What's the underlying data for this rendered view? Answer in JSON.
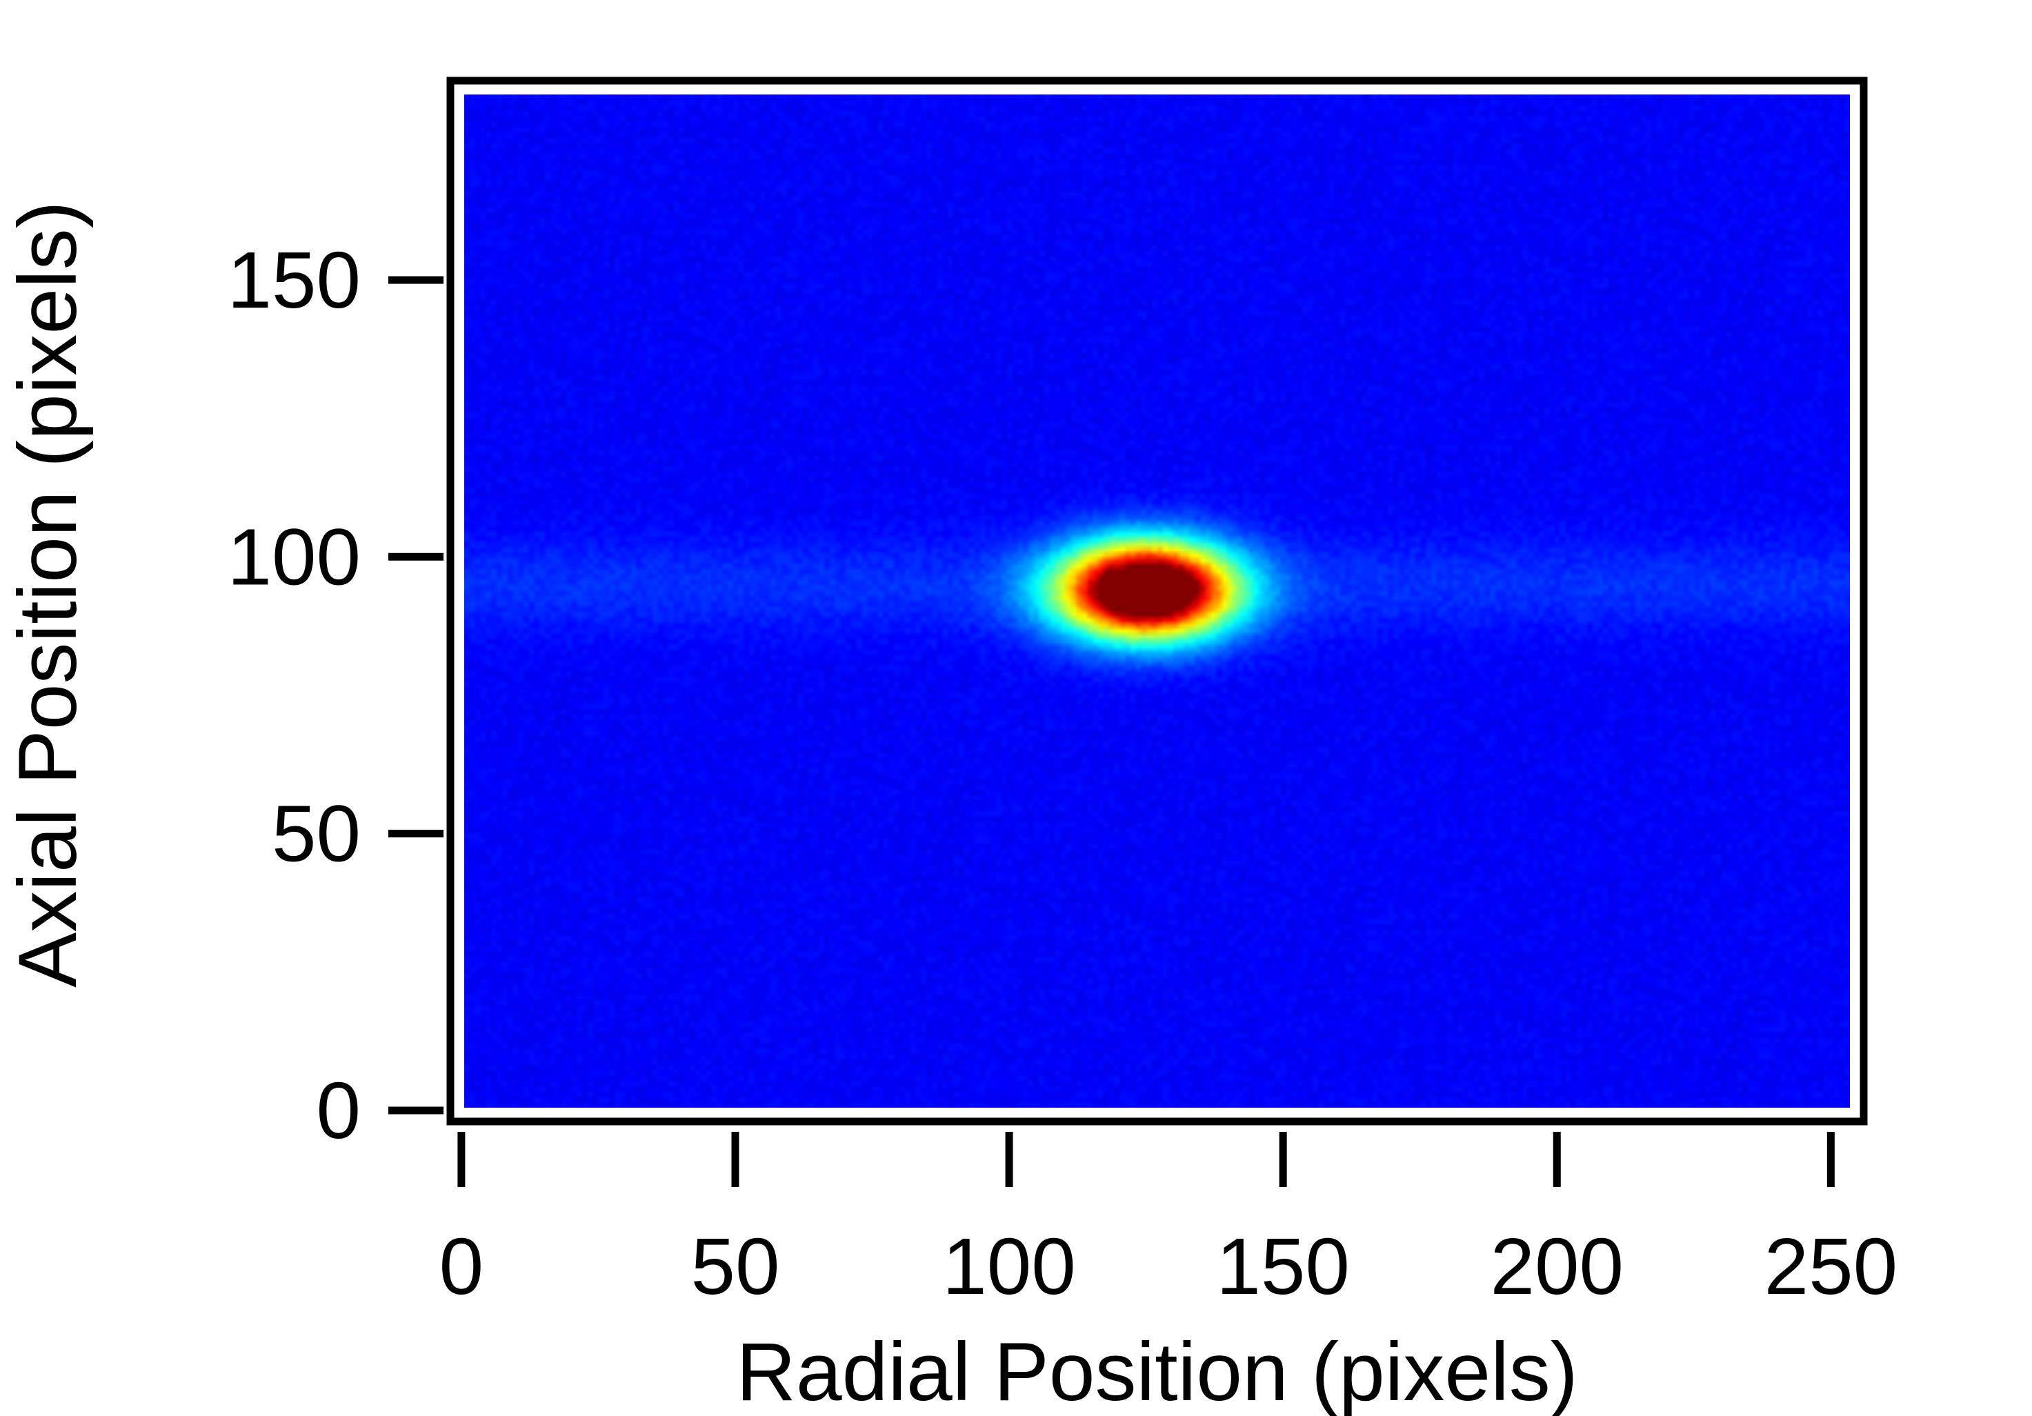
{
  "chart_data": {
    "type": "heatmap",
    "title": "",
    "xlabel": "Radial Position (pixels)",
    "ylabel": "Axial Position (pixels)",
    "xlim": [
      -2,
      256
    ],
    "ylim": [
      -2,
      186
    ],
    "x_ticks": [
      0,
      50,
      100,
      150,
      200,
      250
    ],
    "y_ticks": [
      0,
      50,
      100,
      150
    ],
    "x_tick_labels": [
      "0",
      "50",
      "100",
      "150",
      "200",
      "250"
    ],
    "y_tick_labels": [
      "0",
      "50",
      "100",
      "150"
    ],
    "colormap": "jet",
    "background_level": 0.12,
    "features": [
      {
        "kind": "peak",
        "center": [
          125,
          94
        ],
        "sigma_x": 11,
        "sigma_y": 6,
        "peak_value": 1.0
      },
      {
        "kind": "horizontal-band",
        "center_y": 95,
        "sigma_y": 6,
        "value": 0.05
      }
    ],
    "grid": false,
    "legend": "none",
    "colors": {
      "background": "#1428e6",
      "peak": "#b00000",
      "frame": "#000000"
    }
  }
}
